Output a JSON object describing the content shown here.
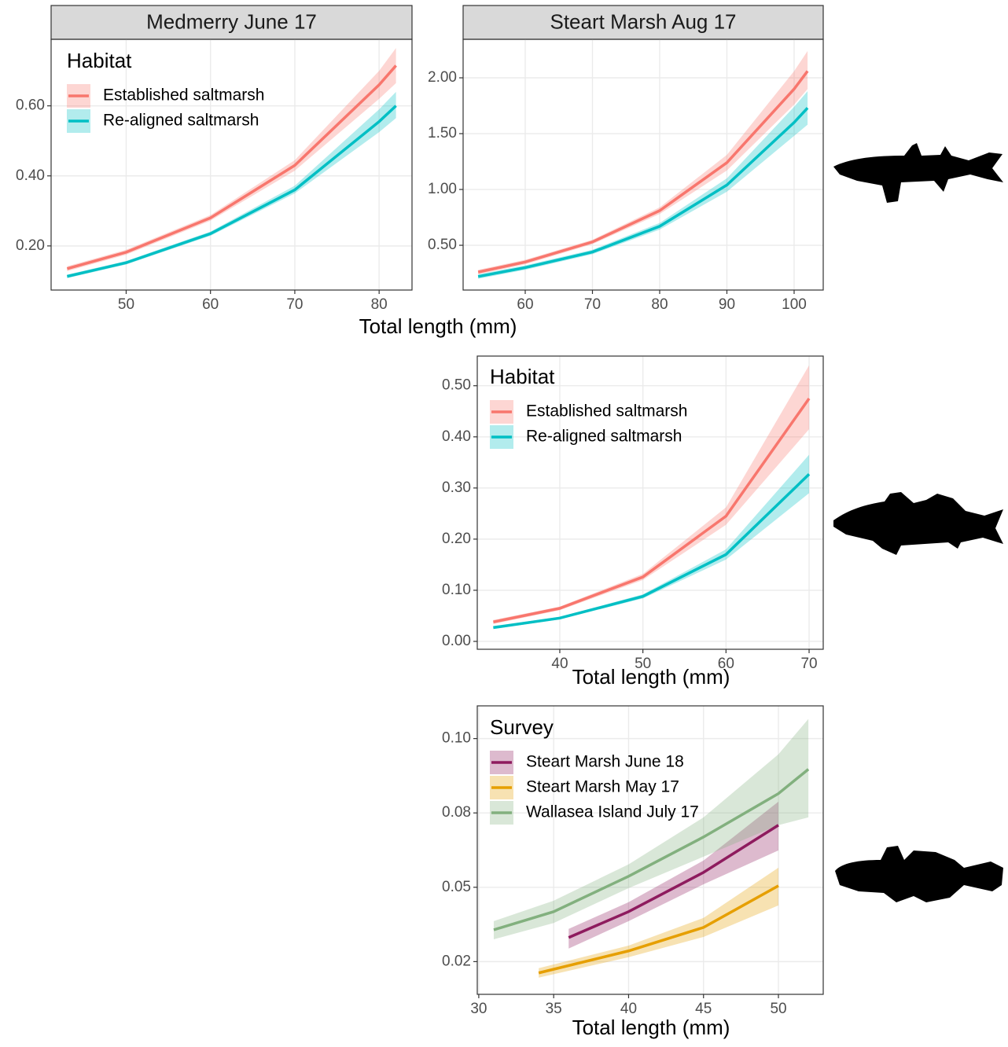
{
  "chart_data": [
    {
      "type": "line",
      "title": "Medmerry June 17",
      "legend_title": "Habitat",
      "xlabel": "Total length (mm)",
      "x": [
        43,
        50,
        60,
        70,
        80,
        82
      ],
      "xlim": [
        41.1,
        83.9
      ],
      "xticks": [
        50,
        60,
        70,
        80
      ],
      "ylim": [
        0.074,
        0.79
      ],
      "yticks": [
        {
          "value": 0.2,
          "label": "0.20"
        },
        {
          "value": 0.4,
          "label": "0.40"
        },
        {
          "value": 0.6,
          "label": "0.60"
        }
      ],
      "grid": true,
      "series": [
        {
          "name": "Established saltmarsh",
          "color": "#F8766D",
          "values": [
            0.135,
            0.182,
            0.28,
            0.43,
            0.66,
            0.715
          ],
          "lower": [
            0.128,
            0.175,
            0.272,
            0.415,
            0.62,
            0.665
          ],
          "upper": [
            0.142,
            0.189,
            0.288,
            0.445,
            0.7,
            0.765
          ]
        },
        {
          "name": "Re-aligned saltmarsh",
          "color": "#00BFC4",
          "values": [
            0.113,
            0.152,
            0.235,
            0.36,
            0.555,
            0.6
          ],
          "lower": [
            0.108,
            0.147,
            0.229,
            0.35,
            0.525,
            0.565
          ],
          "upper": [
            0.118,
            0.157,
            0.241,
            0.372,
            0.59,
            0.64
          ]
        }
      ]
    },
    {
      "type": "line",
      "title": "Steart Marsh Aug 17",
      "x": [
        53,
        60,
        70,
        80,
        90,
        100,
        102
      ],
      "xlim": [
        50.76,
        104.33
      ],
      "xticks": [
        60,
        70,
        80,
        90,
        100
      ],
      "ylim": [
        0.099,
        2.345
      ],
      "yticks": [
        {
          "value": 0.5,
          "label": "0.50"
        },
        {
          "value": 1,
          "label": "1.00"
        },
        {
          "value": 1.5,
          "label": "1.50"
        },
        {
          "value": 2,
          "label": "2.00"
        }
      ],
      "grid": true,
      "series": [
        {
          "color": "#F8766D",
          "values": [
            0.26,
            0.35,
            0.53,
            0.81,
            1.24,
            1.9,
            2.06
          ],
          "lower": [
            0.24,
            0.33,
            0.51,
            0.78,
            1.17,
            1.76,
            1.9
          ],
          "upper": [
            0.28,
            0.37,
            0.55,
            0.84,
            1.31,
            2.06,
            2.24
          ]
        },
        {
          "color": "#00BFC4",
          "values": [
            0.22,
            0.3,
            0.44,
            0.67,
            1.04,
            1.6,
            1.73
          ],
          "lower": [
            0.2,
            0.28,
            0.42,
            0.64,
            0.98,
            1.48,
            1.58
          ],
          "upper": [
            0.24,
            0.32,
            0.46,
            0.7,
            1.1,
            1.74,
            1.88
          ]
        }
      ]
    },
    {
      "type": "line",
      "legend_title": "Habitat",
      "xlabel": "Total length (mm)",
      "x": [
        32,
        40,
        50,
        60,
        70
      ],
      "xlim": [
        30.07,
        71.7
      ],
      "xticks": [
        40,
        50,
        60,
        70
      ],
      "ylim": [
        -0.0154,
        0.558
      ],
      "yticks": [
        {
          "value": 0,
          "label": "0.00"
        },
        {
          "value": 0.1,
          "label": "0.10"
        },
        {
          "value": 0.2,
          "label": "0.20"
        },
        {
          "value": 0.3,
          "label": "0.30"
        },
        {
          "value": 0.4,
          "label": "0.40"
        },
        {
          "value": 0.5,
          "label": "0.50"
        }
      ],
      "grid": true,
      "series": [
        {
          "name": "Established saltmarsh",
          "color": "#F8766D",
          "values": [
            0.038,
            0.0647,
            0.126,
            0.245,
            0.475
          ],
          "lower": [
            0.034,
            0.061,
            0.12,
            0.228,
            0.415
          ],
          "upper": [
            0.042,
            0.068,
            0.132,
            0.262,
            0.54
          ]
        },
        {
          "name": "Re-aligned saltmarsh",
          "color": "#00BFC4",
          "values": [
            0.027,
            0.0456,
            0.088,
            0.17,
            0.327
          ],
          "lower": [
            0.024,
            0.043,
            0.084,
            0.16,
            0.29
          ],
          "upper": [
            0.03,
            0.048,
            0.092,
            0.18,
            0.365
          ]
        }
      ]
    },
    {
      "type": "line",
      "legend_title": "Survey",
      "xlabel": "Total length (mm)",
      "xlim": [
        29.9,
        52.99
      ],
      "xticks": [
        30,
        35,
        40,
        45,
        50
      ],
      "ylim": [
        0.014,
        0.111
      ],
      "yticks": [
        {
          "value": 0.025,
          "label": "0.02"
        },
        {
          "value": 0.05,
          "label": "0.05"
        },
        {
          "value": 0.075,
          "label": "0.08"
        },
        {
          "value": 0.1,
          "label": "0.10"
        }
      ],
      "grid": true,
      "series": [
        {
          "name": "Steart Marsh June 18",
          "color": "#8E1B5E",
          "x": [
            36,
            40,
            45,
            50
          ],
          "values": [
            0.0331,
            0.0418,
            0.055,
            0.0709
          ],
          "lower": [
            0.0294,
            0.0386,
            0.051,
            0.0624
          ],
          "upper": [
            0.036,
            0.045,
            0.059,
            0.0788
          ]
        },
        {
          "name": "Steart Marsh May 17",
          "color": "#E69F00",
          "x": [
            34,
            40,
            45,
            50
          ],
          "values": [
            0.0212,
            0.0286,
            0.0365,
            0.0505
          ],
          "lower": [
            0.0196,
            0.0265,
            0.0333,
            0.0439
          ],
          "upper": [
            0.0228,
            0.0304,
            0.0397,
            0.0566
          ]
        },
        {
          "name": "Wallasea Island July 17",
          "color": "#82B07E",
          "x": [
            31,
            35,
            40,
            45,
            50,
            52
          ],
          "values": [
            0.0357,
            0.0418,
            0.0537,
            0.0669,
            0.0815,
            0.0897
          ],
          "lower": [
            0.0325,
            0.038,
            0.0497,
            0.0603,
            0.0709,
            0.0735
          ],
          "upper": [
            0.0386,
            0.0455,
            0.0577,
            0.0735,
            0.0947,
            0.1066
          ]
        }
      ]
    }
  ]
}
